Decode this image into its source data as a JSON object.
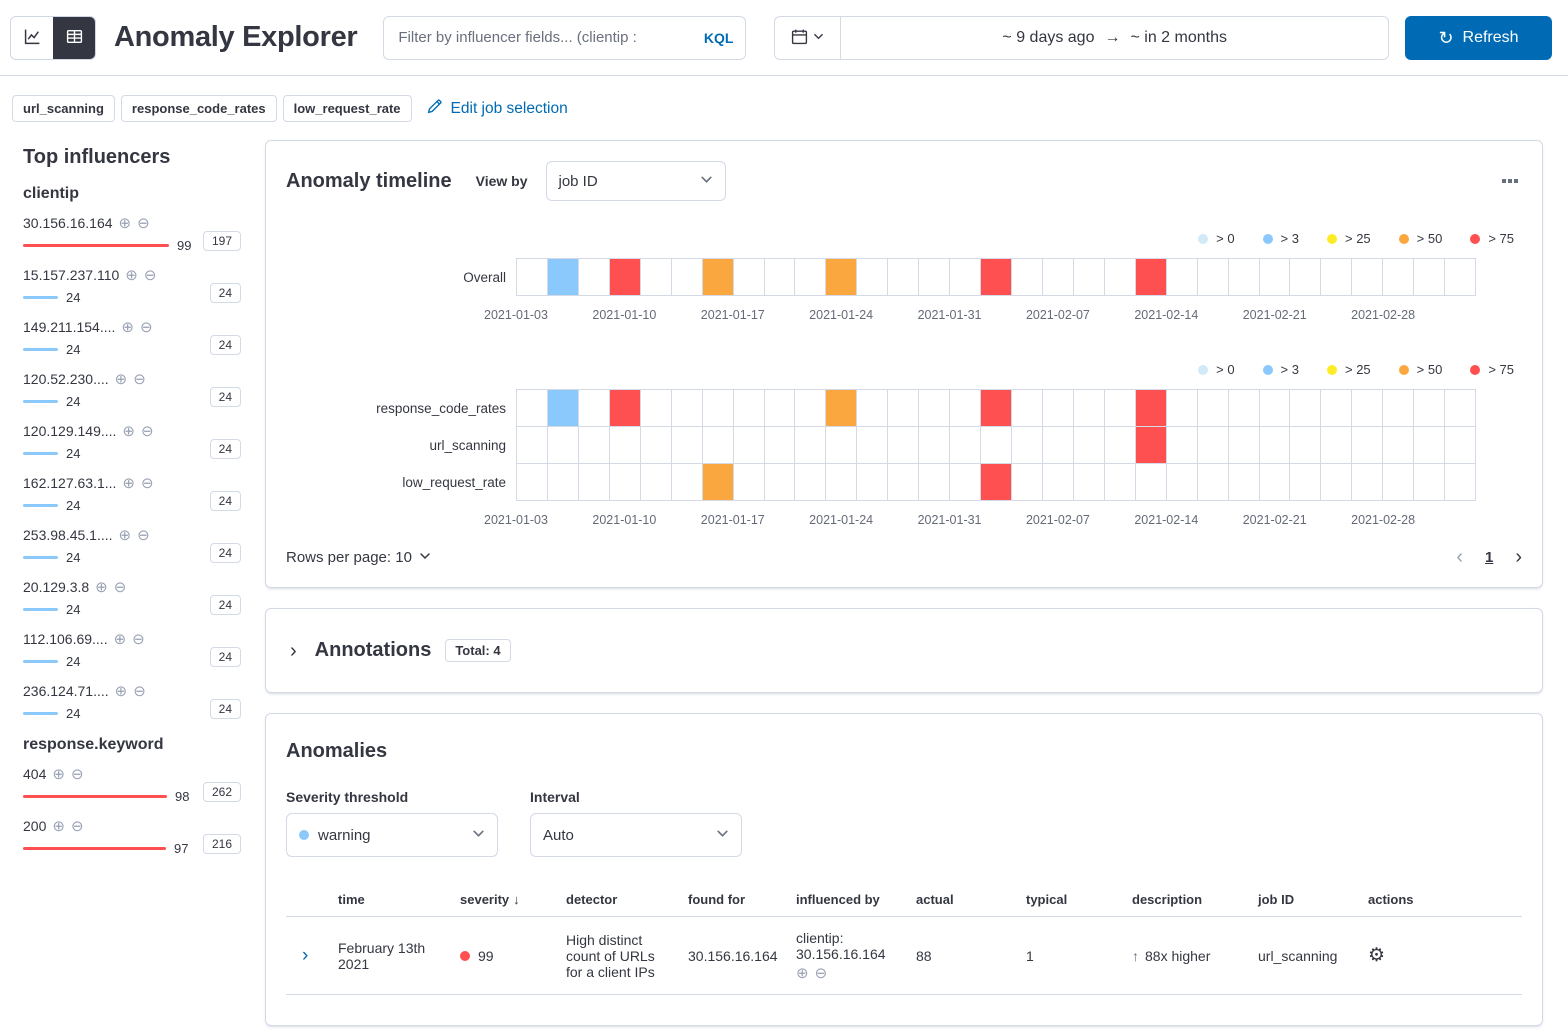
{
  "header": {
    "title": "Anomaly Explorer",
    "search": {
      "placeholder": "Filter by influencer fields... (clientip :",
      "language": "KQL"
    },
    "time_range": {
      "from": "~ 9 days ago",
      "to": "~ in 2 months"
    },
    "refresh_label": "Refresh"
  },
  "jobs": {
    "badges": [
      "url_scanning",
      "response_code_rates",
      "low_request_rate"
    ],
    "edit_label": "Edit job selection"
  },
  "influencers": {
    "title": "Top influencers",
    "groups": [
      {
        "field": "clientip",
        "items": [
          {
            "name": "30.156.16.164",
            "max_score": 99,
            "sum_score": 197,
            "severity": "critical"
          },
          {
            "name": "15.157.237.110",
            "max_score": 24,
            "sum_score": 24,
            "severity": "warning"
          },
          {
            "name": "149.211.154....",
            "max_score": 24,
            "sum_score": 24,
            "severity": "warning"
          },
          {
            "name": "120.52.230....",
            "max_score": 24,
            "sum_score": 24,
            "severity": "warning"
          },
          {
            "name": "120.129.149....",
            "max_score": 24,
            "sum_score": 24,
            "severity": "warning"
          },
          {
            "name": "162.127.63.1...",
            "max_score": 24,
            "sum_score": 24,
            "severity": "warning"
          },
          {
            "name": "253.98.45.1....",
            "max_score": 24,
            "sum_score": 24,
            "severity": "warning"
          },
          {
            "name": "20.129.3.8",
            "max_score": 24,
            "sum_score": 24,
            "severity": "warning"
          },
          {
            "name": "112.106.69....",
            "max_score": 24,
            "sum_score": 24,
            "severity": "warning"
          },
          {
            "name": "236.124.71....",
            "max_score": 24,
            "sum_score": 24,
            "severity": "warning"
          }
        ]
      },
      {
        "field": "response.keyword",
        "items": [
          {
            "name": "404",
            "max_score": 98,
            "sum_score": 262,
            "severity": "critical"
          },
          {
            "name": "200",
            "max_score": 97,
            "sum_score": 216,
            "severity": "critical"
          }
        ]
      }
    ]
  },
  "timeline": {
    "title": "Anomaly timeline",
    "view_by_label": "View by",
    "view_by_value": "job ID",
    "rows_per_page_label": "Rows per page: 10",
    "page": "1"
  },
  "chart_data": {
    "type": "heatmap",
    "n_buckets": 31,
    "tick_every_buckets": 3.5,
    "axis_labels": [
      "2021-01-03",
      "2021-01-10",
      "2021-01-17",
      "2021-01-24",
      "2021-01-31",
      "2021-02-07",
      "2021-02-14",
      "2021-02-21",
      "2021-02-28"
    ],
    "legend": [
      {
        "label": "> 0",
        "color": "#d2e9f7"
      },
      {
        "label": "> 3",
        "color": "#8bc8fb"
      },
      {
        "label": "> 25",
        "color": "#fdec25"
      },
      {
        "label": "> 50",
        "color": "#fba740"
      },
      {
        "label": "> 75",
        "color": "#fe5050"
      }
    ],
    "severity_colors": {
      "low": "#d2e9f7",
      "warning": "#8bc8fb",
      "minor": "#fdec25",
      "major": "#fba740",
      "critical": "#fe5050"
    },
    "overall_lane": {
      "label": "Overall",
      "cells": [
        {
          "bucket": 1,
          "severity": "warning"
        },
        {
          "bucket": 3,
          "severity": "critical"
        },
        {
          "bucket": 6,
          "severity": "major"
        },
        {
          "bucket": 10,
          "severity": "major"
        },
        {
          "bucket": 15,
          "severity": "critical"
        },
        {
          "bucket": 20,
          "severity": "critical"
        }
      ]
    },
    "job_lanes": [
      {
        "label": "response_code_rates",
        "cells": [
          {
            "bucket": 1,
            "severity": "warning"
          },
          {
            "bucket": 3,
            "severity": "critical"
          },
          {
            "bucket": 10,
            "severity": "major"
          },
          {
            "bucket": 15,
            "severity": "critical"
          },
          {
            "bucket": 20,
            "severity": "critical"
          }
        ]
      },
      {
        "label": "url_scanning",
        "cells": [
          {
            "bucket": 20,
            "severity": "critical"
          }
        ]
      },
      {
        "label": "low_request_rate",
        "cells": [
          {
            "bucket": 6,
            "severity": "major"
          },
          {
            "bucket": 15,
            "severity": "critical"
          }
        ]
      }
    ]
  },
  "annotations": {
    "title": "Annotations",
    "total_label": "Total: 4"
  },
  "anomalies": {
    "title": "Anomalies",
    "severity_label": "Severity threshold",
    "severity_value": "warning",
    "interval_label": "Interval",
    "interval_value": "Auto",
    "table": {
      "headers": [
        "time",
        "severity",
        "detector",
        "found for",
        "influenced by",
        "actual",
        "typical",
        "description",
        "job ID",
        "actions"
      ],
      "rows": [
        {
          "time": "February 13th 2021",
          "severity": "99",
          "severity_color": "#fe5050",
          "detector": "High distinct count of URLs for a client IPs",
          "found_for": "30.156.16.164",
          "influenced_by_field": "clientip:",
          "influenced_by_value": "30.156.16.164",
          "actual": "88",
          "typical": "1",
          "description": "88x higher",
          "job_id": "url_scanning"
        }
      ]
    }
  }
}
